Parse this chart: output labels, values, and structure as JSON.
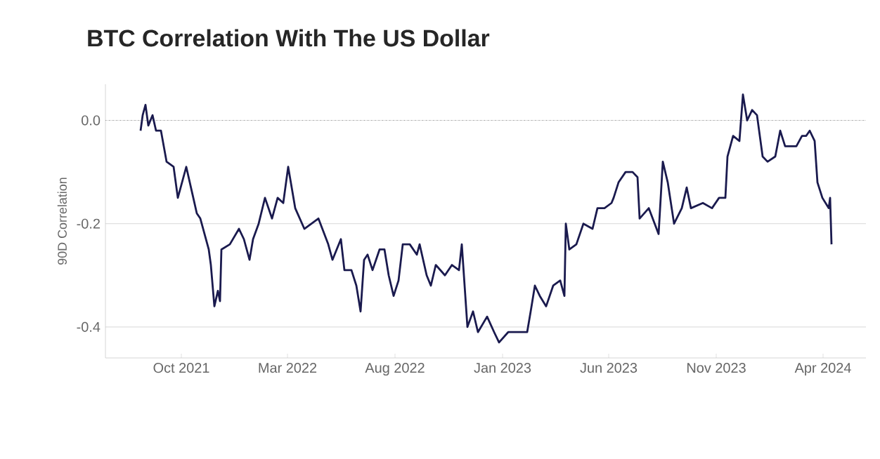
{
  "chart_data": {
    "type": "line",
    "title": "BTC Correlation With The US Dollar",
    "ylabel": "90D Correlation",
    "x": [
      "2021-08-04",
      "2021-08-07",
      "2021-08-11",
      "2021-08-15",
      "2021-08-21",
      "2021-08-26",
      "2021-09-02",
      "2021-09-10",
      "2021-09-20",
      "2021-09-26",
      "2021-10-08",
      "2021-10-18",
      "2021-10-23",
      "2021-10-28",
      "2021-11-09",
      "2021-11-12",
      "2021-11-17",
      "2021-11-22",
      "2021-11-25",
      "2021-11-27",
      "2021-12-09",
      "2021-12-22",
      "2021-12-29",
      "2022-01-06",
      "2022-01-11",
      "2022-01-19",
      "2022-01-28",
      "2022-02-07",
      "2022-02-15",
      "2022-02-23",
      "2022-03-02",
      "2022-03-12",
      "2022-03-25",
      "2022-04-04",
      "2022-04-14",
      "2022-04-28",
      "2022-05-04",
      "2022-05-16",
      "2022-05-21",
      "2022-05-31",
      "2022-06-07",
      "2022-06-13",
      "2022-06-18",
      "2022-06-23",
      "2022-06-30",
      "2022-07-10",
      "2022-07-17",
      "2022-07-23",
      "2022-07-30",
      "2022-08-06",
      "2022-08-12",
      "2022-08-22",
      "2022-09-01",
      "2022-09-05",
      "2022-09-15",
      "2022-09-21",
      "2022-09-28",
      "2022-10-11",
      "2022-10-21",
      "2022-10-31",
      "2022-11-04",
      "2022-11-08",
      "2022-11-12",
      "2022-11-20",
      "2022-11-27",
      "2022-12-10",
      "2022-12-20",
      "2022-12-27",
      "2023-01-09",
      "2023-01-26",
      "2023-02-05",
      "2023-02-10",
      "2023-02-16",
      "2023-02-23",
      "2023-03-04",
      "2023-03-14",
      "2023-03-24",
      "2023-03-30",
      "2023-04-01",
      "2023-04-06",
      "2023-04-16",
      "2023-04-26",
      "2023-05-09",
      "2023-05-16",
      "2023-05-26",
      "2023-06-05",
      "2023-06-08",
      "2023-06-15",
      "2023-06-25",
      "2023-07-05",
      "2023-07-12",
      "2023-07-15",
      "2023-07-28",
      "2023-08-11",
      "2023-08-17",
      "2023-08-24",
      "2023-09-02",
      "2023-09-13",
      "2023-09-20",
      "2023-09-26",
      "2023-10-13",
      "2023-10-26",
      "2023-11-05",
      "2023-11-14",
      "2023-11-17",
      "2023-11-25",
      "2023-12-04",
      "2023-12-09",
      "2023-12-15",
      "2023-12-22",
      "2023-12-29",
      "2024-01-06",
      "2024-01-13",
      "2024-01-24",
      "2024-01-31",
      "2024-02-07",
      "2024-02-23",
      "2024-03-02",
      "2024-03-08",
      "2024-03-13",
      "2024-03-20",
      "2024-03-24",
      "2024-03-31",
      "2024-04-09",
      "2024-04-11",
      "2024-04-13"
    ],
    "series": [
      {
        "color": "#1a1a4e",
        "values": [
          -0.02,
          0.01,
          0.03,
          -0.01,
          0.01,
          -0.02,
          -0.02,
          -0.08,
          -0.09,
          -0.15,
          -0.09,
          -0.15,
          -0.18,
          -0.19,
          -0.25,
          -0.28,
          -0.36,
          -0.33,
          -0.35,
          -0.25,
          -0.24,
          -0.21,
          -0.23,
          -0.27,
          -0.23,
          -0.2,
          -0.15,
          -0.19,
          -0.15,
          -0.16,
          -0.09,
          -0.17,
          -0.21,
          -0.2,
          -0.19,
          -0.24,
          -0.27,
          -0.23,
          -0.29,
          -0.29,
          -0.32,
          -0.37,
          -0.27,
          -0.26,
          -0.29,
          -0.25,
          -0.25,
          -0.3,
          -0.34,
          -0.31,
          -0.24,
          -0.24,
          -0.26,
          -0.24,
          -0.3,
          -0.32,
          -0.28,
          -0.3,
          -0.28,
          -0.29,
          -0.24,
          -0.32,
          -0.4,
          -0.37,
          -0.41,
          -0.38,
          -0.41,
          -0.43,
          -0.41,
          -0.41,
          -0.41,
          -0.37,
          -0.32,
          -0.34,
          -0.36,
          -0.32,
          -0.31,
          -0.34,
          -0.2,
          -0.25,
          -0.24,
          -0.2,
          -0.21,
          -0.17,
          -0.17,
          -0.16,
          -0.15,
          -0.12,
          -0.1,
          -0.1,
          -0.11,
          -0.19,
          -0.17,
          -0.22,
          -0.08,
          -0.12,
          -0.2,
          -0.17,
          -0.13,
          -0.17,
          -0.16,
          -0.17,
          -0.15,
          -0.15,
          -0.07,
          -0.03,
          -0.04,
          0.05,
          0.0,
          0.02,
          0.01,
          -0.07,
          -0.08,
          -0.07,
          -0.02,
          -0.05,
          -0.05,
          -0.03,
          -0.03,
          -0.02,
          -0.04,
          -0.12,
          -0.15,
          -0.17,
          -0.15,
          -0.24
        ]
      }
    ],
    "xlim": [
      "2021-06-15",
      "2024-06-01"
    ],
    "xticks": [
      {
        "value": "2021-10-01",
        "label": "Oct 2021"
      },
      {
        "value": "2022-03-01",
        "label": "Mar 2022"
      },
      {
        "value": "2022-08-01",
        "label": "Aug 2022"
      },
      {
        "value": "2023-01-01",
        "label": "Jan 2023"
      },
      {
        "value": "2023-06-01",
        "label": "Jun 2023"
      },
      {
        "value": "2023-11-01",
        "label": "Nov 2023"
      },
      {
        "value": "2024-04-01",
        "label": "Apr 2024"
      }
    ],
    "ylim": [
      -0.46,
      0.07
    ],
    "yticks": [
      {
        "value": 0,
        "label": "0.0"
      },
      {
        "value": -0.2,
        "label": "-0.2"
      },
      {
        "value": -0.4,
        "label": "-0.4"
      }
    ],
    "grid": "y",
    "ref_lines": [
      {
        "axis": "y",
        "value": 0,
        "line_style": "dotted"
      }
    ],
    "line_style": "solid",
    "marker": "none"
  }
}
